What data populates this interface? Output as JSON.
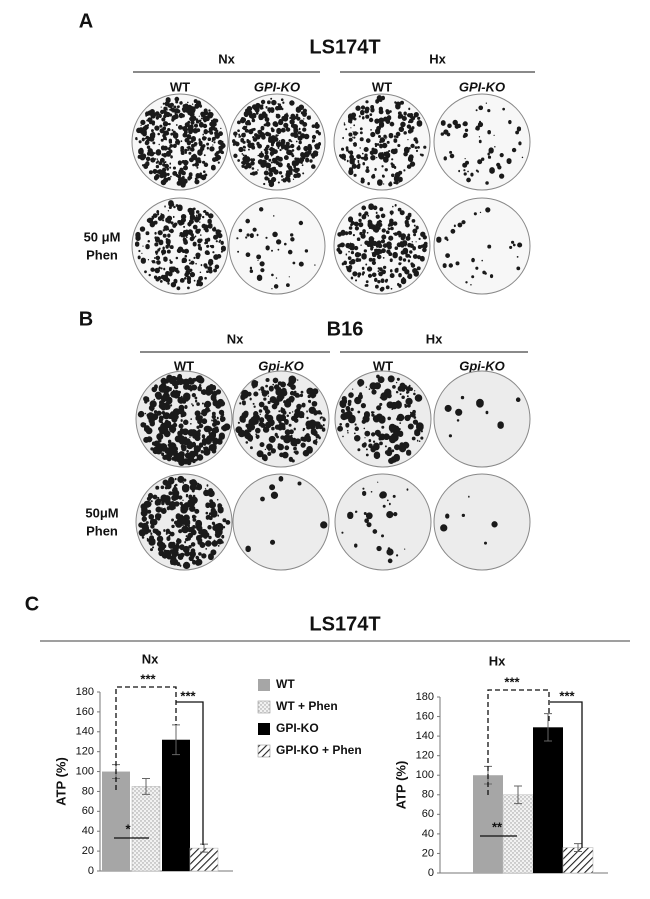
{
  "panels": {
    "a": {
      "label": "A",
      "title": "LS174T",
      "groups": [
        "Nx",
        "Hx"
      ],
      "columns": [
        "WT",
        "GPI-KO",
        "WT",
        "GPI-KO"
      ],
      "row_label": [
        "50 μM",
        "Phen"
      ]
    },
    "b": {
      "label": "B",
      "title": "B16",
      "groups": [
        "Nx",
        "Hx"
      ],
      "columns": [
        "WT",
        "Gpi-KO",
        "WT",
        "Gpi-KO"
      ],
      "row_label": [
        "50μM",
        "Phen"
      ]
    },
    "c": {
      "label": "C",
      "title": "LS174T"
    }
  },
  "chart_data": [
    {
      "type": "bar",
      "title": "Nx",
      "y_label": "ATP (%)",
      "ylim": [
        0,
        180
      ],
      "yticks": [
        0,
        20,
        40,
        60,
        80,
        100,
        120,
        140,
        160,
        180
      ],
      "series": [
        {
          "name": "WT",
          "color": "#a6a6a6",
          "pattern": "solid",
          "values": [
            100
          ],
          "errors": [
            7
          ]
        },
        {
          "name": "WT + Phen",
          "color": "#d9d9d9",
          "pattern": "dots",
          "values": [
            85
          ],
          "errors": [
            8
          ]
        },
        {
          "name": "GPI-KO",
          "color": "#000000",
          "pattern": "solid",
          "values": [
            132
          ],
          "errors": [
            15
          ]
        },
        {
          "name": "GPI-KO + Phen",
          "color": "#333333",
          "pattern": "hatch",
          "values": [
            23
          ],
          "errors": [
            4
          ]
        }
      ],
      "annotations": [
        "***",
        "*",
        "***"
      ]
    },
    {
      "type": "bar",
      "title": "Hx",
      "y_label": "ATP (%)",
      "ylim": [
        0,
        180
      ],
      "yticks": [
        0,
        20,
        40,
        60,
        80,
        100,
        120,
        140,
        160,
        180
      ],
      "series": [
        {
          "name": "WT",
          "color": "#a6a6a6",
          "pattern": "solid",
          "values": [
            100
          ],
          "errors": [
            9
          ]
        },
        {
          "name": "WT + Phen",
          "color": "#d9d9d9",
          "pattern": "dots",
          "values": [
            80
          ],
          "errors": [
            9
          ]
        },
        {
          "name": "GPI-KO",
          "color": "#000000",
          "pattern": "solid",
          "values": [
            149
          ],
          "errors": [
            14
          ]
        },
        {
          "name": "GPI-KO + Phen",
          "color": "#333333",
          "pattern": "hatch",
          "values": [
            26
          ],
          "errors": [
            4
          ]
        }
      ],
      "annotations": [
        "***",
        "**",
        "***"
      ]
    }
  ]
}
